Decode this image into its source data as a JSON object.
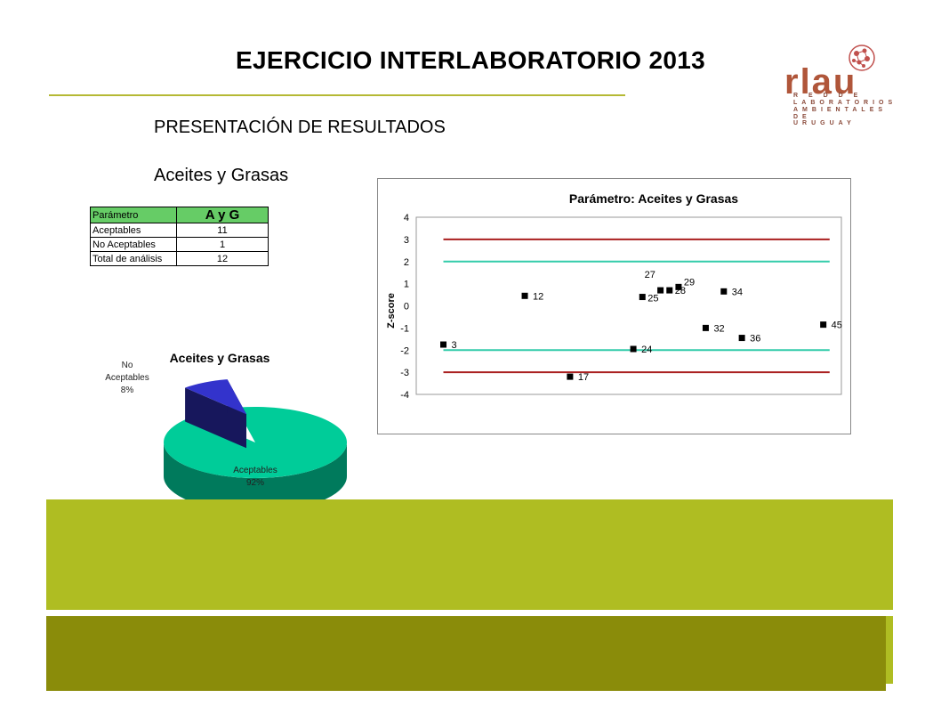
{
  "header": {
    "title": "EJERCICIO INTERLABORATORIO 2013",
    "subtitle": "PRESENTACIÓN DE RESULTADOS",
    "parameter_heading": "Aceites y Grasas"
  },
  "logo": {
    "word": "rlau",
    "lines": [
      "R E D  D E",
      "LABORATORIOS",
      "AMBIENTALES",
      "DE URUGUAY"
    ],
    "icon": "network-molecule-icon"
  },
  "table": {
    "header": {
      "label": "Parámetro",
      "value": "A y G"
    },
    "rows": [
      {
        "label": "Aceptables",
        "value": "11"
      },
      {
        "label": "No Aceptables",
        "value": "1"
      },
      {
        "label": "Total de análisis",
        "value": "12"
      }
    ]
  },
  "colors": {
    "band_light": "#afbd22",
    "band_dark": "#8a8c0a",
    "pie_accept": "#00cc99",
    "pie_reject": "#3333cc",
    "limit_red": "#aa1f1f",
    "limit_teal": "#33ccaa"
  },
  "chart_data": [
    {
      "type": "pie",
      "title": "Aceites y Grasas",
      "three_d": true,
      "slices": [
        {
          "label": "Aceptables",
          "percent_label": "92%",
          "value": 11,
          "color": "#00cc99"
        },
        {
          "label": "No Aceptables",
          "percent_label": "8%",
          "value": 1,
          "color": "#3333cc"
        }
      ]
    },
    {
      "type": "scatter",
      "title": "Parámetro: Aceites y Grasas",
      "xlabel": "",
      "ylabel": "Z-score",
      "ylim": [
        -4,
        4
      ],
      "xlim": [
        0,
        47
      ],
      "yticks": [
        "4",
        "3",
        "2",
        "1",
        "0",
        "-1",
        "-2",
        "-3",
        "-4"
      ],
      "grid": false,
      "reference_lines": [
        {
          "y": 3,
          "color": "#aa1f1f"
        },
        {
          "y": -3,
          "color": "#aa1f1f"
        },
        {
          "y": 2,
          "color": "#33ccaa"
        },
        {
          "y": -2,
          "color": "#33ccaa"
        }
      ],
      "points": [
        {
          "x": 3,
          "y": -1.75,
          "label": "3"
        },
        {
          "x": 12,
          "y": 0.45,
          "label": "12"
        },
        {
          "x": 17,
          "y": -3.2,
          "label": "17"
        },
        {
          "x": 24,
          "y": -1.95,
          "label": "24"
        },
        {
          "x": 25,
          "y": 0.4,
          "label": "25"
        },
        {
          "x": 27,
          "y": 0.7,
          "label": "27"
        },
        {
          "x": 28,
          "y": 0.7,
          "label": "28"
        },
        {
          "x": 29,
          "y": 0.85,
          "label": "29"
        },
        {
          "x": 32,
          "y": -1.0,
          "label": "32"
        },
        {
          "x": 34,
          "y": 0.65,
          "label": "34"
        },
        {
          "x": 36,
          "y": -1.45,
          "label": "36"
        },
        {
          "x": 45,
          "y": -0.85,
          "label": "45"
        }
      ]
    }
  ]
}
